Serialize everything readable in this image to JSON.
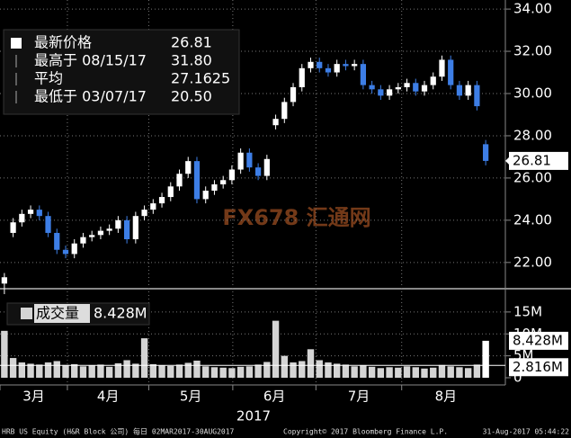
{
  "chart_data": {
    "type": "candlestick",
    "open": [
      21.0,
      23.4,
      23.9,
      24.3,
      24.5,
      24.2,
      23.4,
      22.6,
      22.4,
      22.9,
      23.2,
      23.3,
      23.5,
      23.6,
      24.0,
      23.1,
      24.2,
      24.5,
      24.8,
      25.1,
      25.6,
      26.2,
      26.8,
      25.0,
      25.4,
      25.7,
      25.9,
      26.4,
      27.2,
      26.5,
      26.1,
      28.5,
      28.8,
      29.6,
      30.3,
      31.2,
      31.5,
      31.2,
      31.0,
      31.4,
      31.3,
      31.4,
      30.4,
      30.2,
      29.9,
      30.2,
      30.3,
      30.5,
      30.1,
      30.4,
      30.8,
      31.6,
      30.4,
      29.9,
      30.4,
      27.6
    ],
    "high": [
      21.5,
      24.1,
      24.5,
      24.7,
      24.7,
      24.4,
      23.6,
      22.8,
      23.1,
      23.4,
      23.5,
      23.7,
      23.8,
      24.2,
      24.2,
      24.4,
      24.7,
      25.0,
      25.3,
      25.8,
      26.4,
      27.0,
      27.0,
      25.6,
      25.9,
      26.1,
      26.6,
      27.4,
      27.4,
      26.7,
      27.1,
      29.0,
      29.8,
      30.5,
      31.4,
      31.7,
      31.7,
      31.4,
      31.6,
      31.6,
      31.6,
      31.6,
      30.6,
      30.4,
      30.4,
      30.5,
      30.7,
      30.7,
      30.6,
      31.0,
      31.8,
      31.8,
      30.6,
      30.6,
      30.6,
      27.8
    ],
    "low": [
      20.5,
      23.2,
      23.7,
      24.1,
      24.0,
      23.2,
      22.4,
      22.2,
      22.2,
      22.7,
      23.0,
      23.1,
      23.3,
      23.4,
      22.9,
      22.9,
      24.0,
      24.3,
      24.6,
      24.9,
      25.4,
      26.0,
      24.8,
      24.8,
      25.2,
      25.5,
      25.7,
      26.2,
      26.3,
      25.9,
      25.9,
      28.3,
      28.6,
      29.4,
      30.1,
      31.0,
      31.0,
      30.8,
      30.8,
      31.1,
      31.1,
      30.2,
      30.0,
      29.7,
      29.7,
      30.0,
      30.1,
      29.9,
      29.9,
      30.2,
      30.6,
      30.2,
      29.7,
      29.7,
      29.2,
      26.6
    ],
    "close": [
      21.3,
      23.9,
      24.3,
      24.5,
      24.2,
      23.4,
      22.6,
      22.4,
      22.9,
      23.2,
      23.3,
      23.5,
      23.6,
      24.0,
      23.1,
      24.2,
      24.5,
      24.8,
      25.1,
      25.6,
      26.2,
      26.8,
      25.0,
      25.4,
      25.7,
      25.9,
      26.4,
      27.2,
      26.5,
      26.1,
      26.9,
      28.8,
      29.6,
      30.3,
      31.2,
      31.5,
      31.2,
      31.0,
      31.4,
      31.3,
      31.4,
      30.4,
      30.2,
      29.9,
      30.2,
      30.3,
      30.5,
      30.1,
      30.4,
      30.8,
      31.6,
      30.4,
      29.9,
      30.4,
      29.4,
      26.81
    ],
    "up_color": "#ffffff",
    "down_color": "#3d7ee6",
    "xlim": [
      -0.5,
      55.5
    ],
    "xticks": [
      {
        "value": -0.5,
        "label": "3月"
      },
      {
        "value": 7.2,
        "label": "4月"
      },
      {
        "value": 16.5,
        "label": "5月"
      },
      {
        "value": 26.1,
        "label": "6月"
      },
      {
        "value": 35.6,
        "label": "7月"
      },
      {
        "value": 45.4,
        "label": "8月"
      }
    ],
    "x_label": "2017",
    "ylim": [
      20.8,
      34.43
    ],
    "yticks": [
      {
        "value": 22,
        "label": "22.00"
      },
      {
        "value": 24,
        "label": "24.00"
      },
      {
        "value": 26,
        "label": "26.00"
      },
      {
        "value": 28,
        "label": "28.00"
      },
      {
        "value": 30,
        "label": "30.00"
      },
      {
        "value": 32,
        "label": "32.00"
      },
      {
        "value": 34,
        "label": "34.00"
      }
    ],
    "grid": true,
    "legend": [
      {
        "label": "最新价格",
        "value": "26.81"
      },
      {
        "label": "最高于 08/15/17",
        "value": "31.80"
      },
      {
        "label": "平均",
        "value": "27.1625"
      },
      {
        "label": "最低于 03/07/17",
        "value": "20.50"
      }
    ],
    "volume": {
      "name": "成交量",
      "values": [
        10.7,
        4.5,
        3.5,
        3.2,
        3.0,
        3.5,
        3.8,
        2.9,
        3.1,
        2.6,
        2.8,
        3.0,
        2.5,
        3.3,
        4.0,
        3.2,
        9.0,
        3.1,
        2.8,
        2.7,
        3.0,
        3.4,
        3.9,
        2.6,
        2.4,
        2.3,
        2.2,
        2.5,
        2.6,
        3.0,
        3.6,
        13.0,
        5.0,
        3.5,
        3.8,
        6.5,
        4.0,
        3.5,
        3.2,
        3.0,
        2.6,
        2.8,
        2.5,
        2.2,
        2.4,
        2.3,
        2.6,
        2.4,
        2.1,
        2.3,
        2.9,
        2.6,
        2.4,
        2.2,
        3.0,
        8.428
      ],
      "last_label": "8.428M",
      "average": 2.816,
      "average_label": "2.816M",
      "color": "#d4d4d4",
      "ylim": [
        0,
        19.9
      ],
      "yticks": [
        0,
        {
          "value": 5,
          "label": "5M"
        },
        {
          "value": 10,
          "label": "10M"
        },
        {
          "value": 15,
          "label": "15M"
        }
      ]
    },
    "watermark": "FX678 汇通网",
    "footer": [
      "HRB US Equity (H&R Block 公司) 每日 02MAR2017-30AUG2017",
      "Copyright© 2017 Bloomberg Finance L.P.",
      "31-Aug-2017 05:44:22"
    ]
  }
}
